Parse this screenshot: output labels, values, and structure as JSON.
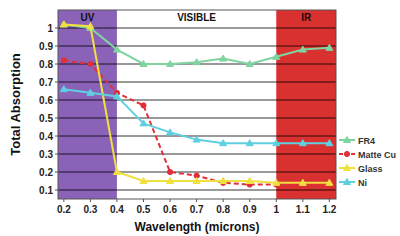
{
  "chart_data": {
    "type": "line",
    "x_label": "Wavelength (microns)",
    "y_label": "Total Absorption",
    "x": [
      0.2,
      0.3,
      0.4,
      0.5,
      0.6,
      0.7,
      0.8,
      0.9,
      1.0,
      1.1,
      1.2
    ],
    "xlim": [
      0.178,
      1.225
    ],
    "xticks": [
      0.2,
      0.3,
      0.4,
      0.5,
      0.6,
      0.7,
      0.8,
      0.9,
      {
        "value": 1.0,
        "label": "1"
      },
      1.1,
      1.2
    ],
    "ylim": [
      0.05,
      1.1
    ],
    "yticks": [
      0.1,
      0.2,
      0.3,
      0.4,
      0.5,
      0.6,
      0.7,
      0.8,
      0.9,
      1
    ],
    "grid": true,
    "legend": "right",
    "annotations": [
      {
        "text": "UV",
        "x0": 0.178,
        "x1": 0.4,
        "color": "#8a62b8"
      },
      {
        "text": "VISIBLE",
        "x0": 0.4,
        "x1": 1.0,
        "color": "#ffffff"
      },
      {
        "text": "IR",
        "x0": 1.0,
        "x1": 1.225,
        "color": "#d93030"
      }
    ],
    "series": [
      {
        "name": "FR4",
        "color": "#7fd4a0",
        "marker": "triangle",
        "values": [
          1.02,
          1.0,
          0.88,
          0.8,
          0.8,
          0.81,
          0.83,
          0.8,
          0.84,
          0.88,
          0.89
        ]
      },
      {
        "name": "Matte Cu",
        "color": "#e0303a",
        "marker": "circle",
        "line_style": "dashed",
        "values": [
          0.82,
          0.8,
          0.64,
          0.57,
          0.2,
          0.18,
          0.14,
          0.13,
          0.13,
          0.13,
          0.13
        ]
      },
      {
        "name": "Glass",
        "color": "#f0e040",
        "marker": "triangle",
        "values": [
          1.02,
          1.01,
          0.2,
          0.15,
          0.15,
          0.15,
          0.15,
          0.15,
          0.14,
          0.14,
          0.14
        ]
      },
      {
        "name": "Ni",
        "color": "#5fd0e0",
        "marker": "triangle",
        "values": [
          0.66,
          0.64,
          0.62,
          0.47,
          0.42,
          0.38,
          0.36,
          0.36,
          0.36,
          0.36,
          0.36
        ]
      }
    ]
  }
}
